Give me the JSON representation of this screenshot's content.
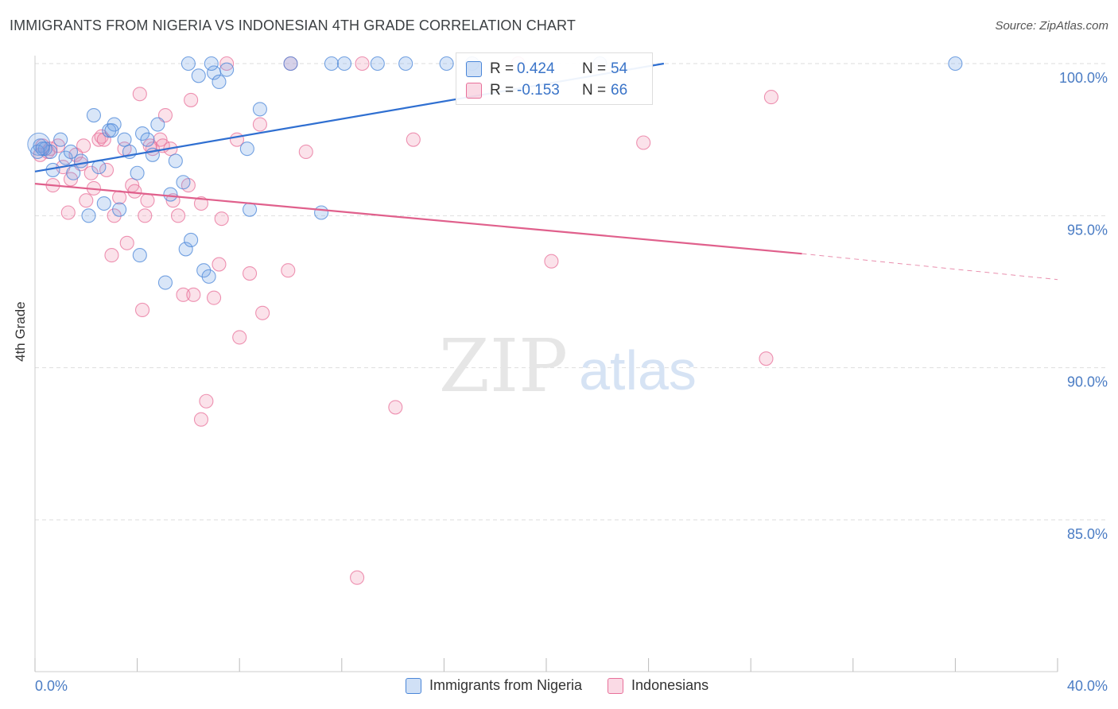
{
  "header": {
    "title": "IMMIGRANTS FROM NIGERIA VS INDONESIAN 4TH GRADE CORRELATION CHART",
    "source": "Source: ZipAtlas.com"
  },
  "watermark": {
    "zip": "ZIP",
    "atlas": "atlas"
  },
  "stats": [
    {
      "r_label": "R =",
      "r_value": "0.424",
      "n_label": "N =",
      "n_value": "54",
      "color": "#4a86d8"
    },
    {
      "r_label": "R =",
      "r_value": "-0.153",
      "n_label": "N =",
      "n_value": "66",
      "color": "#e8709a"
    }
  ],
  "legend": [
    {
      "label": "Immigrants from Nigeria",
      "color": "#4a86d8"
    },
    {
      "label": "Indonesians",
      "color": "#e8709a"
    }
  ],
  "chart_data": {
    "type": "scatter",
    "title": "IMMIGRANTS FROM NIGERIA VS INDONESIAN 4TH GRADE CORRELATION CHART",
    "xlabel": "",
    "ylabel": "4th Grade",
    "xlim": [
      0,
      40
    ],
    "ylim": [
      80.5,
      100.3
    ],
    "x_tick_labels": [
      "0.0%",
      "40.0%"
    ],
    "y_ticks": [
      85,
      90,
      95,
      100
    ],
    "y_tick_labels": [
      "85.0%",
      "90.0%",
      "95.0%",
      "100.0%"
    ],
    "grid": "horizontal dashed",
    "series": [
      {
        "name": "Immigrants from Nigeria",
        "color": "#4a86d8",
        "fill": "rgba(120,165,230,0.28)",
        "trend": {
          "x0": 0,
          "y0": 96.45,
          "x1": 24.6,
          "y1": 100.0
        },
        "points": [
          [
            0.2,
            97.3
          ],
          [
            0.4,
            97.2
          ],
          [
            0.6,
            97.1
          ],
          [
            0.7,
            96.5
          ],
          [
            1.0,
            97.5
          ],
          [
            1.2,
            96.9
          ],
          [
            1.4,
            97.1
          ],
          [
            1.5,
            96.4
          ],
          [
            1.8,
            96.8
          ],
          [
            2.1,
            95.0
          ],
          [
            2.3,
            98.3
          ],
          [
            2.5,
            96.6
          ],
          [
            2.7,
            95.4
          ],
          [
            2.9,
            97.8
          ],
          [
            3.1,
            98.0
          ],
          [
            3.3,
            95.2
          ],
          [
            3.5,
            97.5
          ],
          [
            3.7,
            97.1
          ],
          [
            4.0,
            96.4
          ],
          [
            4.1,
            93.7
          ],
          [
            4.2,
            97.7
          ],
          [
            4.4,
            97.5
          ],
          [
            4.6,
            97.0
          ],
          [
            4.8,
            98.0
          ],
          [
            5.1,
            92.8
          ],
          [
            5.3,
            95.7
          ],
          [
            5.5,
            96.8
          ],
          [
            5.8,
            96.1
          ],
          [
            5.9,
            93.9
          ],
          [
            6.1,
            94.2
          ],
          [
            6.0,
            100.0
          ],
          [
            6.4,
            99.6
          ],
          [
            6.6,
            93.2
          ],
          [
            6.8,
            93.0
          ],
          [
            7.0,
            99.7
          ],
          [
            7.2,
            99.4
          ],
          [
            6.9,
            100.0
          ],
          [
            7.5,
            99.8
          ],
          [
            8.3,
            97.2
          ],
          [
            8.8,
            98.5
          ],
          [
            8.4,
            95.2
          ],
          [
            10.0,
            100.0
          ],
          [
            11.2,
            95.1
          ],
          [
            11.6,
            100.0
          ],
          [
            12.1,
            100.0
          ],
          [
            13.4,
            100.0
          ],
          [
            14.5,
            100.0
          ],
          [
            16.1,
            100.0
          ],
          [
            17.1,
            100.0
          ],
          [
            22.1,
            100.0
          ],
          [
            36.0,
            100.0
          ],
          [
            0.1,
            97.1
          ],
          [
            0.3,
            97.2
          ],
          [
            3.0,
            97.8
          ]
        ]
      },
      {
        "name": "Indonesians",
        "color": "#e8709a",
        "fill": "rgba(240,150,180,0.28)",
        "trend": {
          "x0": 0,
          "y0": 96.05,
          "x1": 30.0,
          "y1": 93.75
        },
        "trend_dashed": {
          "x0": 30.0,
          "y0": 93.75,
          "x1": 40.0,
          "y1": 92.9
        },
        "points": [
          [
            0.2,
            97.0
          ],
          [
            0.3,
            97.3
          ],
          [
            0.5,
            97.1
          ],
          [
            0.7,
            96.0
          ],
          [
            0.9,
            97.3
          ],
          [
            1.3,
            95.1
          ],
          [
            1.4,
            96.2
          ],
          [
            1.6,
            97.0
          ],
          [
            1.8,
            96.7
          ],
          [
            1.9,
            97.3
          ],
          [
            2.0,
            95.5
          ],
          [
            2.2,
            96.4
          ],
          [
            2.3,
            95.9
          ],
          [
            2.5,
            97.5
          ],
          [
            2.6,
            97.6
          ],
          [
            2.8,
            96.5
          ],
          [
            3.0,
            93.7
          ],
          [
            3.1,
            95.0
          ],
          [
            3.3,
            95.6
          ],
          [
            3.5,
            97.2
          ],
          [
            3.6,
            94.1
          ],
          [
            3.8,
            96.0
          ],
          [
            3.9,
            95.8
          ],
          [
            4.1,
            99.0
          ],
          [
            4.2,
            91.9
          ],
          [
            4.3,
            95.0
          ],
          [
            4.4,
            95.5
          ],
          [
            4.6,
            97.2
          ],
          [
            4.9,
            97.5
          ],
          [
            5.0,
            97.3
          ],
          [
            5.1,
            98.3
          ],
          [
            5.3,
            97.2
          ],
          [
            5.4,
            95.5
          ],
          [
            5.6,
            95.0
          ],
          [
            5.8,
            92.4
          ],
          [
            6.0,
            96.0
          ],
          [
            6.1,
            98.8
          ],
          [
            6.2,
            92.4
          ],
          [
            6.5,
            95.4
          ],
          [
            6.5,
            88.3
          ],
          [
            6.7,
            88.9
          ],
          [
            7.0,
            92.3
          ],
          [
            7.2,
            93.4
          ],
          [
            7.3,
            94.9
          ],
          [
            7.5,
            100.0
          ],
          [
            7.9,
            97.5
          ],
          [
            8.0,
            91.0
          ],
          [
            8.4,
            93.1
          ],
          [
            8.8,
            98.0
          ],
          [
            8.9,
            91.8
          ],
          [
            9.9,
            93.2
          ],
          [
            10.0,
            100.0
          ],
          [
            10.6,
            97.1
          ],
          [
            12.6,
            83.1
          ],
          [
            12.8,
            100.0
          ],
          [
            14.1,
            88.7
          ],
          [
            14.8,
            97.5
          ],
          [
            18.9,
            100.0
          ],
          [
            20.2,
            93.5
          ],
          [
            23.8,
            97.4
          ],
          [
            28.6,
            90.3
          ],
          [
            28.8,
            98.9
          ],
          [
            1.1,
            96.6
          ],
          [
            2.7,
            97.5
          ],
          [
            4.5,
            97.3
          ],
          [
            0.6,
            97.2
          ]
        ]
      }
    ]
  }
}
